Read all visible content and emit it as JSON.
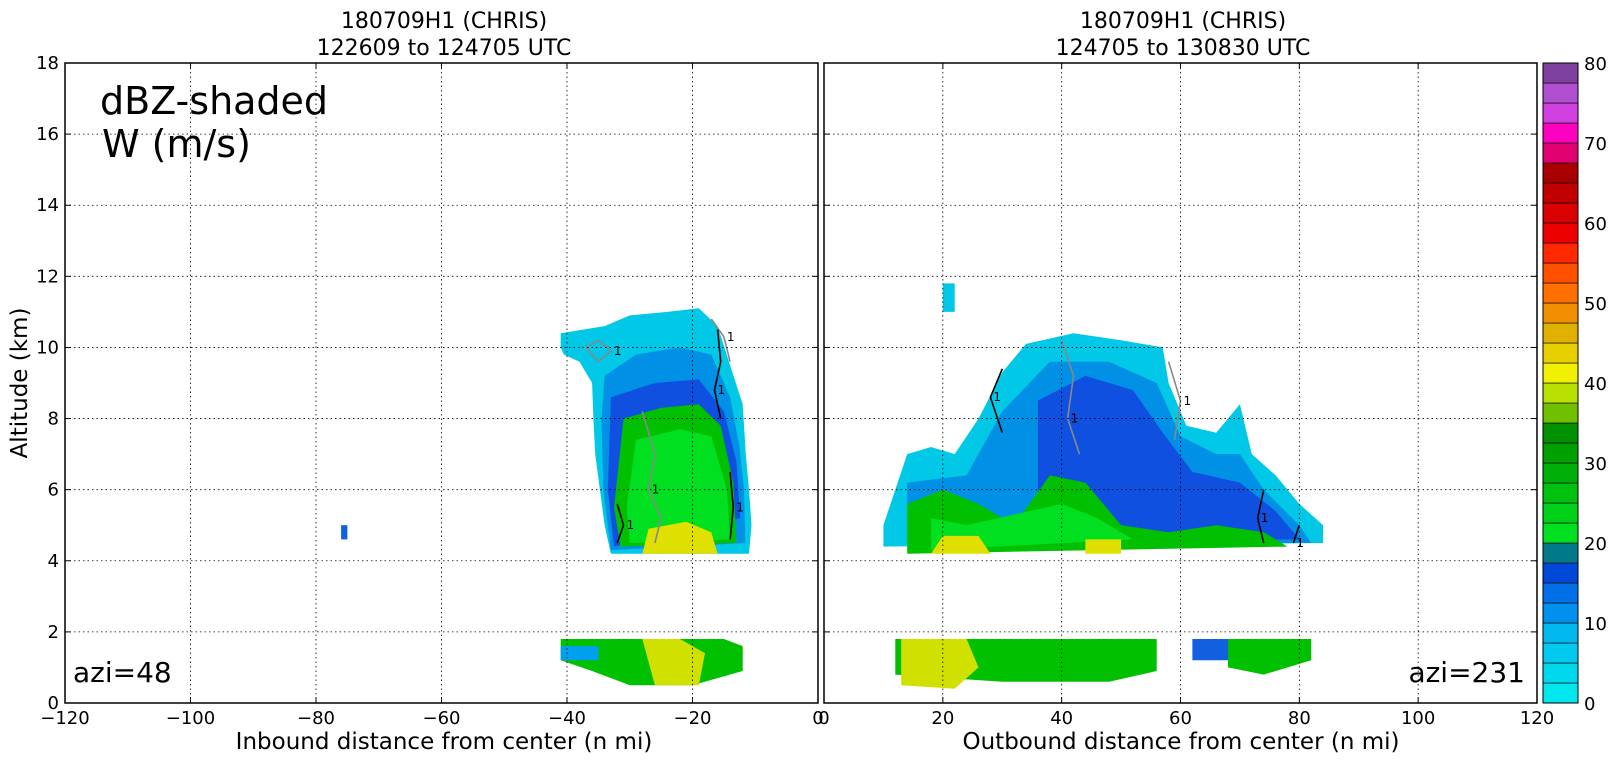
{
  "chart_data": [
    {
      "type": "heatmap",
      "title_line1": "180709H1 (CHRIS)",
      "title_line2": "122609 to 124705 UTC",
      "xlabel": "Inbound distance from center (n mi)",
      "ylabel": "Altitude (km)",
      "xlim": [
        -120,
        0
      ],
      "ylim": [
        0,
        18
      ],
      "xticks": [
        -120,
        -100,
        -80,
        -60,
        -40,
        -20,
        0
      ],
      "yticks": [
        0,
        2,
        4,
        6,
        8,
        10,
        12,
        14,
        16,
        18
      ],
      "grid": true,
      "legend_text": [
        "dBZ-shaded",
        "W (m/s)"
      ],
      "annotation": "azi=48",
      "contour_label": "1",
      "echo_regions": [
        {
          "name": "upper-echo",
          "color": "#00c8e6",
          "points": [
            [
              -41,
              10.4
            ],
            [
              -34,
              10.6
            ],
            [
              -30,
              10.9
            ],
            [
              -24,
              11.0
            ],
            [
              -19,
              11.1
            ],
            [
              -16,
              10.6
            ],
            [
              -14,
              9.5
            ],
            [
              -12,
              8.4
            ],
            [
              -11.5,
              7
            ],
            [
              -11,
              6
            ],
            [
              -10.6,
              5
            ],
            [
              -11,
              4.2
            ],
            [
              -33,
              4.2
            ],
            [
              -34,
              5
            ],
            [
              -35.5,
              7
            ],
            [
              -35.8,
              8
            ],
            [
              -36,
              9
            ],
            [
              -38,
              9.6
            ],
            [
              -40.5,
              9.8
            ],
            [
              -41,
              10
            ]
          ]
        },
        {
          "name": "upper-echo",
          "color": "#0090e6",
          "points": [
            [
              -34,
              9.2
            ],
            [
              -29,
              9.8
            ],
            [
              -22,
              10.0
            ],
            [
              -17,
              9.8
            ],
            [
              -14,
              8.6
            ],
            [
              -12.5,
              7.2
            ],
            [
              -11.8,
              6
            ],
            [
              -11.6,
              4.5
            ],
            [
              -33,
              4.3
            ],
            [
              -34.2,
              6
            ],
            [
              -34.5,
              8
            ]
          ]
        },
        {
          "name": "upper-echo",
          "color": "#1050e0",
          "points": [
            [
              -33,
              8.6
            ],
            [
              -26,
              9.0
            ],
            [
              -19,
              9.1
            ],
            [
              -15,
              8.2
            ],
            [
              -13,
              6.8
            ],
            [
              -12.4,
              5.2
            ],
            [
              -32.5,
              4.4
            ],
            [
              -33.5,
              6
            ]
          ]
        },
        {
          "name": "mid-echo",
          "color": "#00c000",
          "points": [
            [
              -31,
              8.0
            ],
            [
              -25,
              8.3
            ],
            [
              -19,
              8.4
            ],
            [
              -15.5,
              7.8
            ],
            [
              -13.5,
              6.2
            ],
            [
              -13,
              4.5
            ],
            [
              -31.5,
              4.4
            ],
            [
              -32.5,
              5.5
            ]
          ]
        },
        {
          "name": "mid-echo",
          "color": "#00e020",
          "points": [
            [
              -29,
              7.4
            ],
            [
              -22,
              7.7
            ],
            [
              -17,
              7.5
            ],
            [
              -14.5,
              6.0
            ],
            [
              -14,
              4.6
            ],
            [
              -30,
              4.5
            ],
            [
              -30.5,
              5.5
            ]
          ]
        },
        {
          "name": "bright-band",
          "color": "#e0e000",
          "points": [
            [
              -27,
              4.9
            ],
            [
              -21,
              5.1
            ],
            [
              -17,
              4.8
            ],
            [
              -16,
              4.2
            ],
            [
              -28,
              4.2
            ]
          ]
        },
        {
          "name": "lower-echo",
          "color": "#00c000",
          "points": [
            [
              -41,
              1.8
            ],
            [
              -15,
              1.8
            ],
            [
              -12,
              1.6
            ],
            [
              -12,
              0.9
            ],
            [
              -20,
              0.5
            ],
            [
              -30,
              0.5
            ],
            [
              -36,
              0.9
            ],
            [
              -41,
              1.2
            ]
          ]
        },
        {
          "name": "lower-echo",
          "color": "#d0e000",
          "points": [
            [
              -28,
              1.8
            ],
            [
              -22,
              1.8
            ],
            [
              -18,
              1.4
            ],
            [
              -19,
              0.5
            ],
            [
              -26,
              0.5
            ]
          ]
        },
        {
          "name": "lower-echo",
          "color": "#00a0f0",
          "points": [
            [
              -41,
              1.6
            ],
            [
              -35,
              1.6
            ],
            [
              -35,
              1.2
            ],
            [
              -41,
              1.2
            ]
          ]
        },
        {
          "name": "isolated-echo",
          "color": "#1060e0",
          "points": [
            [
              -76,
              5.0
            ],
            [
              -75,
              5.0
            ],
            [
              -75,
              4.6
            ],
            [
              -76,
              4.6
            ]
          ]
        }
      ],
      "w_contours": [
        {
          "name": "w-contour",
          "color": "#888888",
          "points": [
            [
              -37,
              10.0
            ],
            [
              -35,
              10.2
            ],
            [
              -33,
              9.9
            ],
            [
              -35,
              9.6
            ],
            [
              -37,
              10.0
            ]
          ]
        },
        {
          "name": "w-contour",
          "color": "#888888",
          "points": [
            [
              -28,
              8.2
            ],
            [
              -26,
              7.0
            ],
            [
              -27,
              6.0
            ],
            [
              -25,
              5.2
            ],
            [
              -26,
              4.5
            ]
          ]
        },
        {
          "name": "w-contour",
          "color": "#888888",
          "points": [
            [
              -17,
              10.8
            ],
            [
              -15,
              10.3
            ],
            [
              -14,
              9.6
            ]
          ]
        },
        {
          "name": "w-contour",
          "color": "#000000",
          "points": [
            [
              -16,
              10.5
            ],
            [
              -15.5,
              9.6
            ],
            [
              -16.5,
              8.8
            ],
            [
              -15.5,
              8.0
            ]
          ]
        },
        {
          "name": "w-contour",
          "color": "#000000",
          "points": [
            [
              -32,
              5.6
            ],
            [
              -31,
              5.0
            ],
            [
              -32,
              4.5
            ]
          ]
        },
        {
          "name": "w-contour",
          "color": "#000000",
          "points": [
            [
              -14,
              6.5
            ],
            [
              -13.5,
              5.5
            ],
            [
              -14,
              4.6
            ]
          ]
        }
      ]
    },
    {
      "type": "heatmap",
      "title_line1": "180709H1 (CHRIS)",
      "title_line2": "124705 to 130830 UTC",
      "xlabel": "Outbound distance from center (n mi)",
      "ylabel": "",
      "xlim": [
        0,
        120
      ],
      "ylim": [
        0,
        18
      ],
      "xticks": [
        0,
        20,
        40,
        60,
        80,
        100,
        120
      ],
      "yticks": [
        0,
        2,
        4,
        6,
        8,
        10,
        12,
        14,
        16,
        18
      ],
      "grid": true,
      "annotation": "azi=231",
      "contour_label": "1",
      "echo_regions": [
        {
          "name": "upper-echo",
          "color": "#00c8e6",
          "points": [
            [
              10,
              5.0
            ],
            [
              14,
              7.0
            ],
            [
              18,
              7.2
            ],
            [
              22,
              7.0
            ],
            [
              26,
              8.0
            ],
            [
              30,
              9.3
            ],
            [
              34,
              10.1
            ],
            [
              42,
              10.4
            ],
            [
              50,
              10.2
            ],
            [
              57,
              10.0
            ],
            [
              58,
              9.0
            ],
            [
              61,
              7.8
            ],
            [
              66,
              7.6
            ],
            [
              70,
              8.4
            ],
            [
              72,
              7.0
            ],
            [
              76,
              6.4
            ],
            [
              80,
              5.6
            ],
            [
              84,
              5.0
            ],
            [
              84,
              4.5
            ],
            [
              10,
              4.4
            ]
          ]
        },
        {
          "name": "upper-echo",
          "color": "#0090e6",
          "points": [
            [
              14,
              6.2
            ],
            [
              24,
              6.4
            ],
            [
              30,
              8.2
            ],
            [
              38,
              9.6
            ],
            [
              48,
              9.6
            ],
            [
              56,
              9.0
            ],
            [
              60,
              7.5
            ],
            [
              66,
              7.0
            ],
            [
              70,
              7.0
            ],
            [
              74,
              6.0
            ],
            [
              80,
              5.0
            ],
            [
              82,
              4.5
            ],
            [
              14,
              4.4
            ]
          ]
        },
        {
          "name": "upper-echo",
          "color": "#1050e0",
          "points": [
            [
              36,
              8.5
            ],
            [
              44,
              9.2
            ],
            [
              52,
              8.8
            ],
            [
              57,
              7.6
            ],
            [
              62,
              6.5
            ],
            [
              70,
              6.2
            ],
            [
              76,
              5.4
            ],
            [
              80,
              4.6
            ],
            [
              36,
              4.6
            ]
          ]
        },
        {
          "name": "mid-echo",
          "color": "#00c000",
          "points": [
            [
              14,
              5.6
            ],
            [
              20,
              6.0
            ],
            [
              26,
              5.6
            ],
            [
              32,
              5.0
            ],
            [
              38,
              6.4
            ],
            [
              44,
              6.2
            ],
            [
              50,
              5.0
            ],
            [
              58,
              4.8
            ],
            [
              66,
              5.0
            ],
            [
              74,
              4.8
            ],
            [
              78,
              4.4
            ],
            [
              14,
              4.2
            ]
          ]
        },
        {
          "name": "mid-echo",
          "color": "#00e020",
          "points": [
            [
              18,
              5.2
            ],
            [
              24,
              5.0
            ],
            [
              40,
              5.6
            ],
            [
              46,
              5.2
            ],
            [
              52,
              4.6
            ],
            [
              18,
              4.3
            ]
          ]
        },
        {
          "name": "bright-band",
          "color": "#e0e000",
          "points": [
            [
              20,
              4.7
            ],
            [
              26,
              4.7
            ],
            [
              28,
              4.2
            ],
            [
              18,
              4.2
            ]
          ]
        },
        {
          "name": "bright-band",
          "color": "#e0e000",
          "points": [
            [
              44,
              4.6
            ],
            [
              50,
              4.6
            ],
            [
              50,
              4.2
            ],
            [
              44,
              4.2
            ]
          ]
        },
        {
          "name": "lower-echo",
          "color": "#00c000",
          "points": [
            [
              12,
              1.8
            ],
            [
              56,
              1.8
            ],
            [
              56,
              0.9
            ],
            [
              48,
              0.6
            ],
            [
              30,
              0.6
            ],
            [
              12,
              0.8
            ]
          ]
        },
        {
          "name": "lower-echo",
          "color": "#d0e000",
          "points": [
            [
              13,
              1.8
            ],
            [
              24,
              1.8
            ],
            [
              26,
              1.0
            ],
            [
              22,
              0.4
            ],
            [
              13,
              0.5
            ]
          ]
        },
        {
          "name": "lower-echo",
          "color": "#1060e0",
          "points": [
            [
              62,
              1.8
            ],
            [
              68,
              1.8
            ],
            [
              68,
              1.2
            ],
            [
              62,
              1.2
            ]
          ]
        },
        {
          "name": "lower-echo",
          "color": "#00c000",
          "points": [
            [
              68,
              1.8
            ],
            [
              82,
              1.8
            ],
            [
              82,
              1.2
            ],
            [
              74,
              0.8
            ],
            [
              68,
              1.0
            ]
          ]
        },
        {
          "name": "lower-echo",
          "color": "#00c8e6",
          "points": [
            [
              20,
              11.8
            ],
            [
              22,
              11.8
            ],
            [
              22,
              11.0
            ],
            [
              20,
              11.0
            ]
          ]
        }
      ],
      "w_contours": [
        {
          "name": "w-contour",
          "color": "#888888",
          "points": [
            [
              40,
              10.2
            ],
            [
              42,
              9.2
            ],
            [
              41,
              8.0
            ],
            [
              43,
              7.0
            ]
          ]
        },
        {
          "name": "w-contour",
          "color": "#888888",
          "points": [
            [
              58,
              9.6
            ],
            [
              60,
              8.5
            ],
            [
              59,
              7.4
            ]
          ]
        },
        {
          "name": "w-contour",
          "color": "#000000",
          "points": [
            [
              30,
              9.4
            ],
            [
              28,
              8.6
            ],
            [
              30,
              7.6
            ]
          ]
        },
        {
          "name": "w-contour",
          "color": "#000000",
          "points": [
            [
              74,
              6.0
            ],
            [
              73,
              5.2
            ],
            [
              74,
              4.5
            ]
          ]
        },
        {
          "name": "w-contour",
          "color": "#000000",
          "points": [
            [
              80,
              5.0
            ],
            [
              79,
              4.5
            ]
          ]
        }
      ]
    }
  ],
  "colorbar": {
    "ticks": [
      0,
      10,
      20,
      30,
      40,
      50,
      60,
      70,
      80
    ],
    "range": [
      0,
      80
    ],
    "step": 2.5,
    "colors": [
      "#00e8ee",
      "#00d8ee",
      "#00c8ee",
      "#00b8ee",
      "#0090ee",
      "#0070e8",
      "#0048d8",
      "#007a8a",
      "#00e020",
      "#00d018",
      "#00c010",
      "#00b008",
      "#00a000",
      "#009000",
      "#70c000",
      "#b8e000",
      "#f0f000",
      "#e8d000",
      "#e0b000",
      "#f09000",
      "#ff7000",
      "#ff5000",
      "#ff2800",
      "#ee0000",
      "#d80000",
      "#c00000",
      "#a80000",
      "#e00070",
      "#ff00c0",
      "#d040e0",
      "#b050d0",
      "#8040a0",
      "#503060",
      "#000000"
    ]
  }
}
